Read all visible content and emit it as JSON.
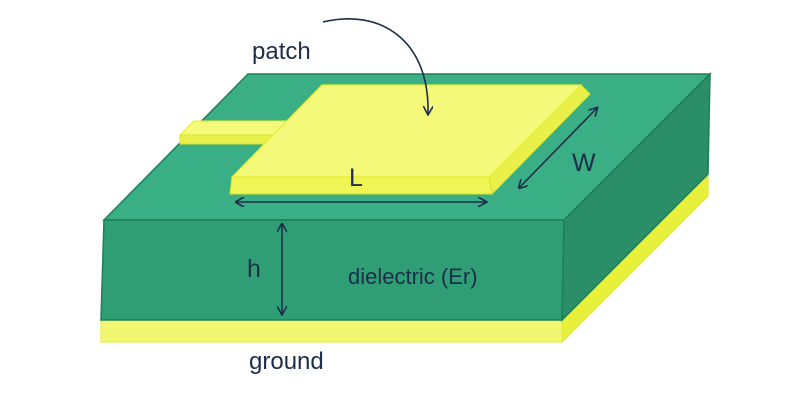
{
  "labels": {
    "patch": "patch",
    "ground": "ground",
    "dielectric": "dielectric (Er)",
    "length": "L",
    "width": "W",
    "height": "h"
  },
  "colors": {
    "substrate_top": "#3aae84",
    "substrate_front": "#2f9e74",
    "substrate_side": "#2a8f68",
    "substrate_edge": "#1f7e58",
    "patch_fill": "#f4f97a",
    "patch_edge": "#e4ee2a",
    "ground_fill": "#f2f771",
    "ground_edge": "#e0ec2c",
    "ink": "#1c2e4a"
  }
}
